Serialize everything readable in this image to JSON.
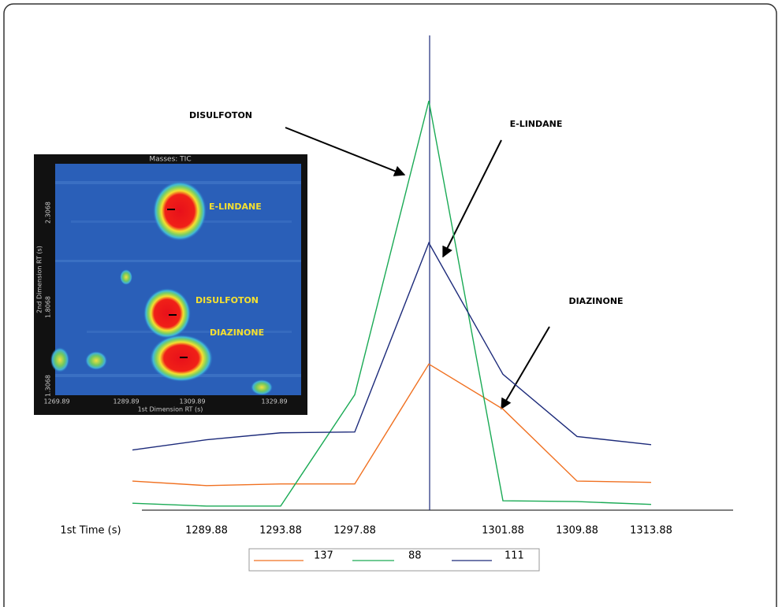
{
  "chart_data": {
    "type": "line",
    "x_label": "1st Time (s)",
    "categories": [
      null,
      "1289.88",
      "1293.88",
      "1297.88",
      null,
      "1301.88",
      "1309.88",
      "1313.88"
    ],
    "series": [
      {
        "name": "137",
        "color": "#f07020",
        "values": [
          7.1,
          6.0,
          6.4,
          6.4,
          35.7,
          24.7,
          7.1,
          6.8
        ]
      },
      {
        "name": "88",
        "color": "#1aaa55",
        "values": [
          1.7,
          1.0,
          1.0,
          28.2,
          100,
          2.3,
          2.1,
          1.4
        ]
      },
      {
        "name": "111",
        "color": "#1c2a7a",
        "values": [
          14.7,
          17.2,
          18.9,
          19.1,
          65.3,
          33.2,
          18.0,
          16.0
        ]
      }
    ],
    "ylim": [
      0,
      116
    ],
    "annotations": [
      "DISULFOTON",
      "E-LINDANE",
      "DIAZINONE"
    ],
    "inset": {
      "title": "Masses: TIC",
      "labels": [
        "E-LINDANE",
        "DISULFOTON",
        "DIAZINONE"
      ],
      "y_label": "2nd Dimension RT (s)",
      "yticks": [
        "2.3068",
        "1.8068",
        "1.3068"
      ],
      "x_label": "1st Dimension RT (s)",
      "xticks": [
        "1269.89",
        "1289.89",
        "1309.89",
        "1329.89"
      ]
    }
  }
}
